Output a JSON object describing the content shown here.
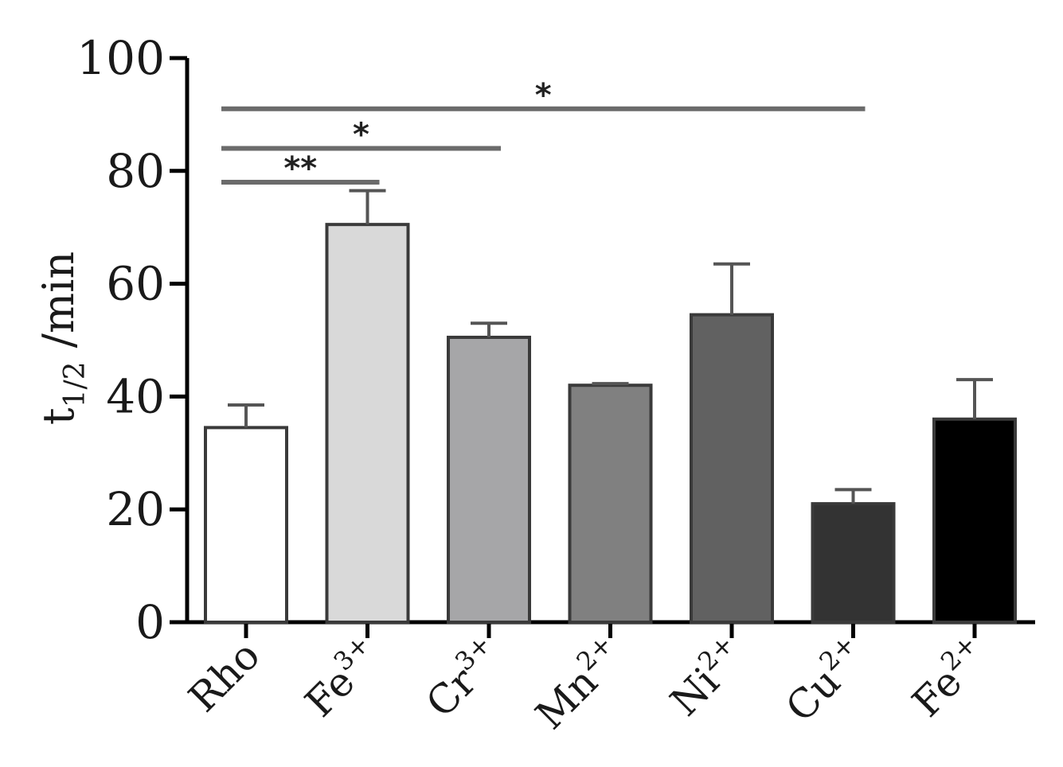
{
  "chart_data": {
    "type": "bar",
    "ylabel": {
      "main": "t",
      "sub": "1/2",
      "unit": " /min"
    },
    "ylim": [
      0,
      100
    ],
    "yticks": [
      0,
      20,
      40,
      60,
      80,
      100
    ],
    "categories": [
      {
        "base": "Rho",
        "sup": ""
      },
      {
        "base": "Fe",
        "sup": "3+"
      },
      {
        "base": "Cr",
        "sup": "3+"
      },
      {
        "base": "Mn",
        "sup": "2+"
      },
      {
        "base": "Ni",
        "sup": "2+"
      },
      {
        "base": "Cu",
        "sup": "2+"
      },
      {
        "base": "Fe",
        "sup": "2+"
      }
    ],
    "values": [
      34.5,
      70.5,
      50.5,
      42,
      54.5,
      21,
      36
    ],
    "errors": [
      4,
      6,
      2.5,
      0.3,
      9,
      2.5,
      7
    ],
    "colors": [
      "#ffffff",
      "#d9d9d9",
      "#a6a6a8",
      "#808080",
      "#616161",
      "#333333",
      "#000000"
    ],
    "significance": [
      {
        "from": 0,
        "to": 1,
        "y": 78,
        "label": "**"
      },
      {
        "from": 0,
        "to": 2,
        "y": 84,
        "label": "*"
      },
      {
        "from": 0,
        "to": 5,
        "y": 91,
        "label": "*"
      }
    ]
  }
}
